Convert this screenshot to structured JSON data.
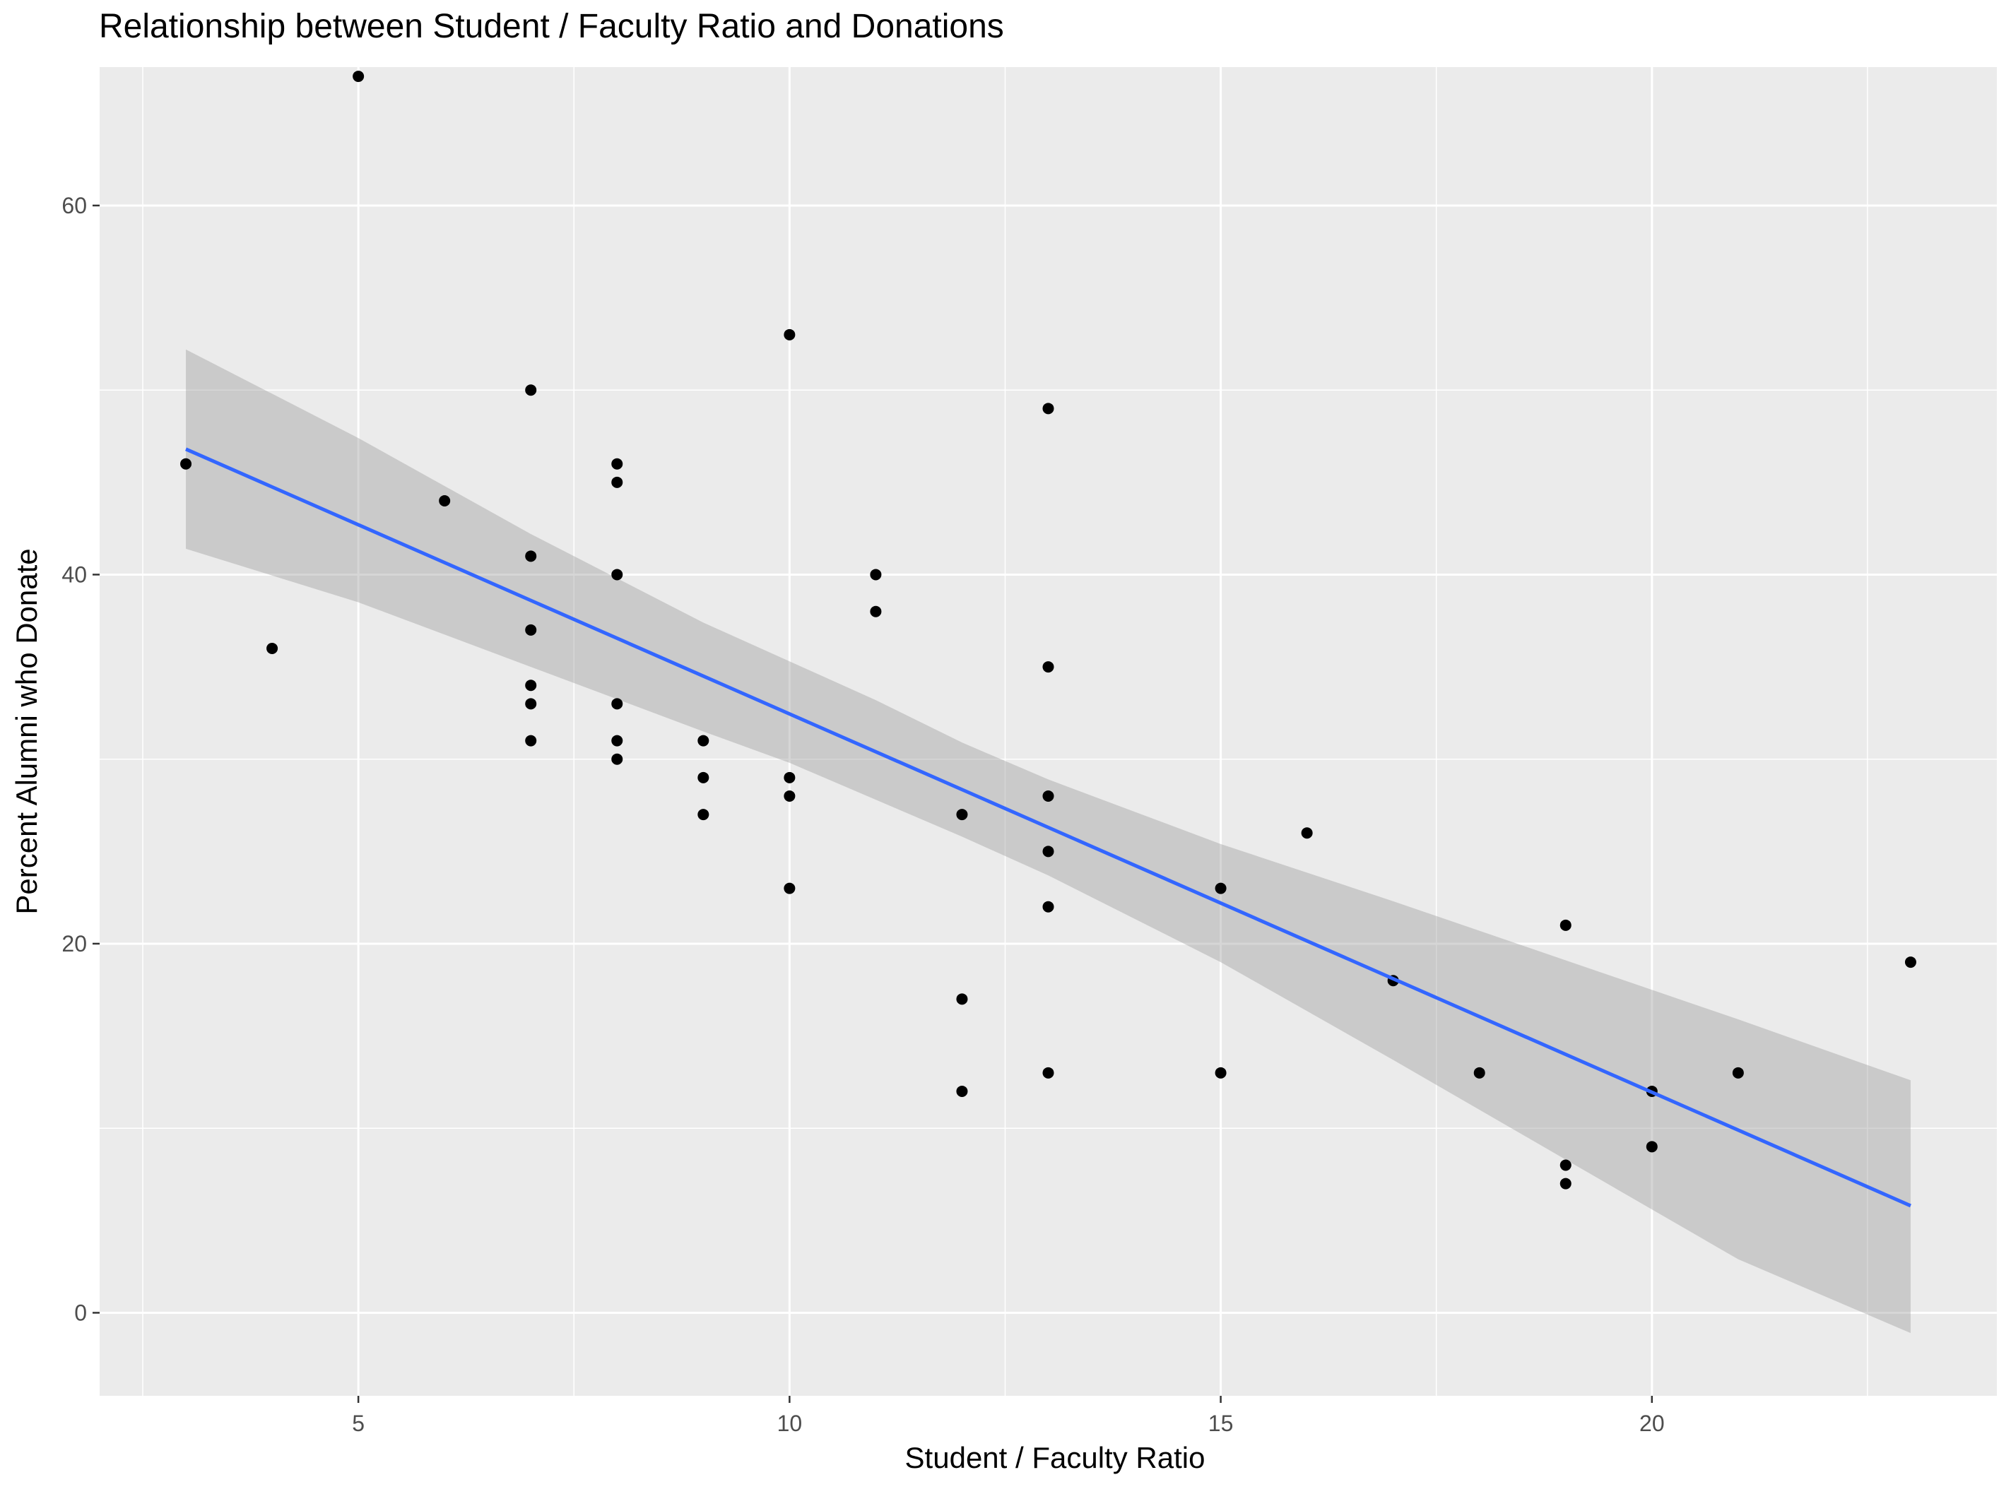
{
  "chart_data": {
    "type": "scatter",
    "title": "Relationship between Student / Faculty Ratio and Donations",
    "xlabel": "Student / Faculty Ratio",
    "ylabel": "Percent Alumni who Donate",
    "xlim": [
      2.0,
      24.0
    ],
    "ylim": [
      -4.5,
      67.5
    ],
    "x_ticks": [
      5,
      10,
      15,
      20
    ],
    "y_ticks": [
      0,
      20,
      40,
      60
    ],
    "grid": true,
    "legend": "none",
    "points": [
      {
        "x": 3,
        "y": 46
      },
      {
        "x": 4,
        "y": 36
      },
      {
        "x": 5,
        "y": 67
      },
      {
        "x": 6,
        "y": 44
      },
      {
        "x": 7,
        "y": 50
      },
      {
        "x": 7,
        "y": 41
      },
      {
        "x": 7,
        "y": 37
      },
      {
        "x": 7,
        "y": 34
      },
      {
        "x": 7,
        "y": 33
      },
      {
        "x": 7,
        "y": 31
      },
      {
        "x": 8,
        "y": 46
      },
      {
        "x": 8,
        "y": 45
      },
      {
        "x": 8,
        "y": 40
      },
      {
        "x": 8,
        "y": 33
      },
      {
        "x": 8,
        "y": 31
      },
      {
        "x": 8,
        "y": 30
      },
      {
        "x": 9,
        "y": 31
      },
      {
        "x": 9,
        "y": 29
      },
      {
        "x": 9,
        "y": 27
      },
      {
        "x": 10,
        "y": 53
      },
      {
        "x": 10,
        "y": 29
      },
      {
        "x": 10,
        "y": 28
      },
      {
        "x": 10,
        "y": 23
      },
      {
        "x": 11,
        "y": 40
      },
      {
        "x": 11,
        "y": 38
      },
      {
        "x": 12,
        "y": 27
      },
      {
        "x": 12,
        "y": 17
      },
      {
        "x": 12,
        "y": 12
      },
      {
        "x": 13,
        "y": 49
      },
      {
        "x": 13,
        "y": 35
      },
      {
        "x": 13,
        "y": 28
      },
      {
        "x": 13,
        "y": 25
      },
      {
        "x": 13,
        "y": 22
      },
      {
        "x": 13,
        "y": 13
      },
      {
        "x": 15,
        "y": 23
      },
      {
        "x": 15,
        "y": 13
      },
      {
        "x": 16,
        "y": 26
      },
      {
        "x": 17,
        "y": 18
      },
      {
        "x": 18,
        "y": 13
      },
      {
        "x": 19,
        "y": 21
      },
      {
        "x": 19,
        "y": 8
      },
      {
        "x": 19,
        "y": 7
      },
      {
        "x": 20,
        "y": 12
      },
      {
        "x": 20,
        "y": 9
      },
      {
        "x": 21,
        "y": 13
      },
      {
        "x": 23,
        "y": 19
      }
    ],
    "trend_line": {
      "method": "linear",
      "x": [
        3,
        23
      ],
      "y": [
        46.8,
        5.8
      ],
      "ci_lower": [
        41.4,
        -1.1
      ],
      "ci_upper": [
        52.2,
        12.6
      ],
      "ci_mid_x": [
        5,
        7,
        9,
        10,
        11,
        12,
        13,
        15,
        17,
        19,
        21
      ],
      "ci_mid_lower": [
        38.5,
        35.0,
        31.5,
        29.8,
        27.8,
        25.8,
        23.7,
        19.0,
        13.7,
        8.3,
        2.9
      ],
      "ci_mid_upper": [
        47.4,
        42.2,
        37.4,
        35.3,
        33.2,
        30.9,
        28.9,
        25.4,
        22.3,
        19.1,
        15.9
      ],
      "color": "#3366FF",
      "band_color": "#999999"
    },
    "colors": {
      "panel_background": "#EBEBEB",
      "grid_major": "#FFFFFF",
      "point": "#000000",
      "tick_label": "#4D4D4D"
    }
  }
}
